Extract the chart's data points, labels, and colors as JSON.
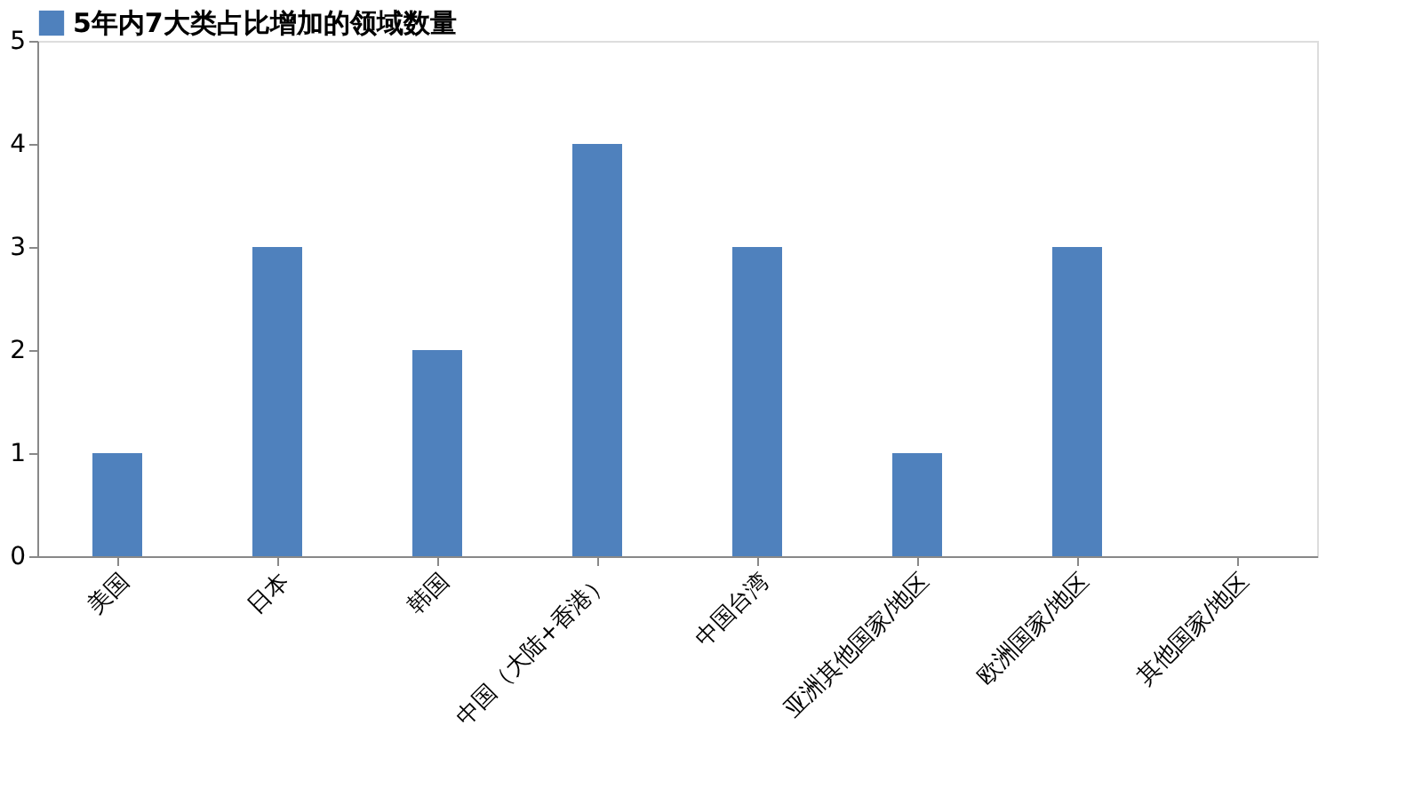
{
  "chart_data": {
    "type": "bar",
    "categories": [
      "美国",
      "日本",
      "韩国",
      "中国（大陆+香港）",
      "中国台湾",
      "亚洲其他国家/地区",
      "欧洲国家/地区",
      "其他国家/地区"
    ],
    "series": [
      {
        "name": "5年内7大类占比增加的领域数量",
        "color": "#4f81bd",
        "values": [
          1,
          3,
          2,
          4,
          3,
          1,
          3,
          0
        ]
      }
    ],
    "ylim": [
      0,
      5
    ],
    "yticks": [
      0,
      1,
      2,
      3,
      4,
      5
    ],
    "grid": false,
    "legend": "top"
  }
}
